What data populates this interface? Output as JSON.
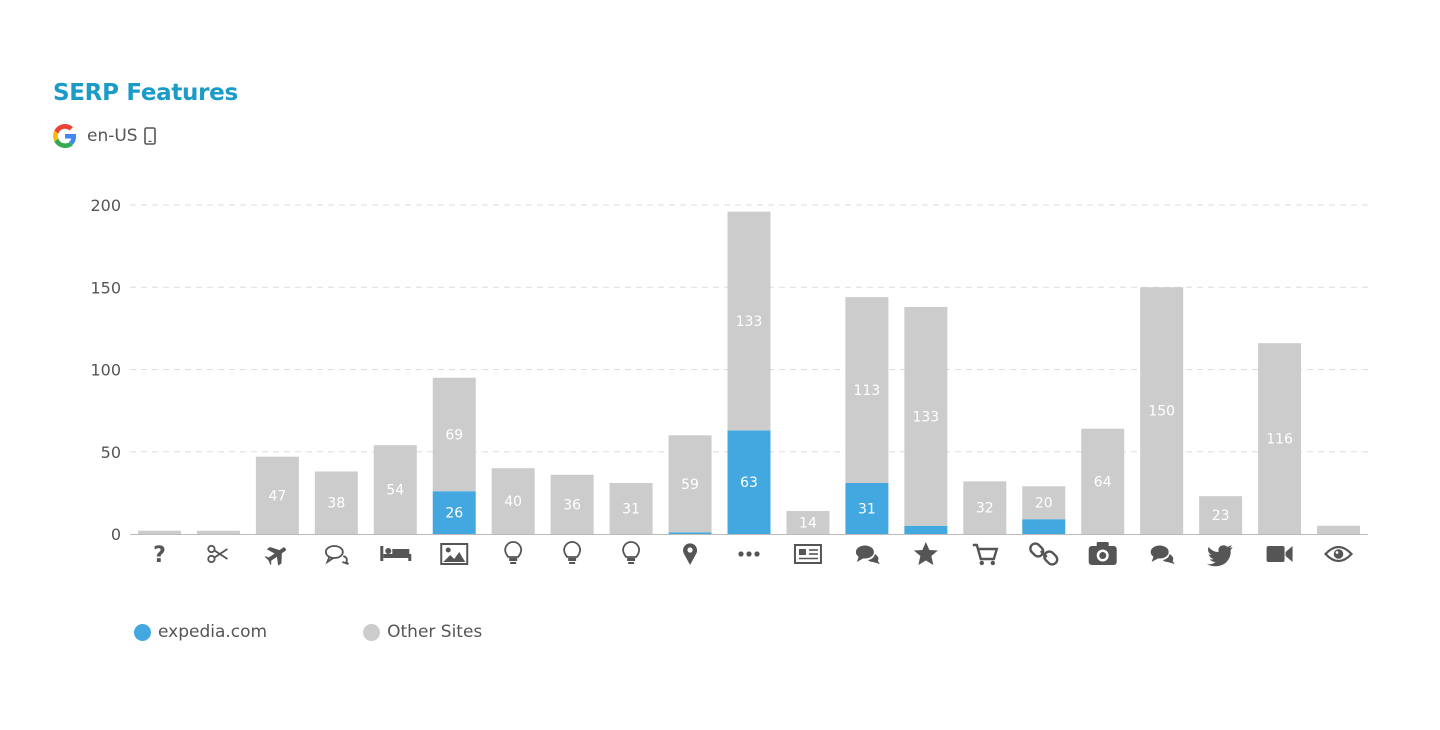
{
  "header": {
    "title": "SERP Features",
    "locale": "en-US",
    "search_engine_icon": "google-g-icon",
    "device_icon": "mobile-phone-icon"
  },
  "colors": {
    "title": "#1a9bc8",
    "domain_series": "#44a8e0",
    "other_series": "#cccccc"
  },
  "chart_data": {
    "type": "bar",
    "stacked": true,
    "categories": [
      "question-icon",
      "scissors-icon",
      "plane-icon",
      "chat-bubbles-icon",
      "bed-icon",
      "image-icon",
      "lightbulb-icon",
      "lightbulb-icon",
      "lightbulb-icon",
      "map-marker-icon",
      "ellipsis-icon",
      "newspaper-icon",
      "comments-icon",
      "star-icon",
      "shopping-cart-icon",
      "link-icon",
      "camera-icon",
      "comments-icon",
      "twitter-icon",
      "video-camera-icon",
      "eye-icon"
    ],
    "series": [
      {
        "name": "expedia.com",
        "color": "#44a8e0",
        "values": [
          0,
          0,
          0,
          0,
          0,
          26,
          0,
          0,
          0,
          1,
          63,
          0,
          31,
          5,
          0,
          9,
          0,
          0,
          0,
          0,
          0
        ],
        "labels": [
          "",
          "",
          "",
          "",
          "",
          "26",
          "",
          "",
          "",
          "",
          "63",
          "",
          "31",
          "",
          "",
          "",
          "",
          "",
          "",
          "",
          ""
        ]
      },
      {
        "name": "Other Sites",
        "color": "#cccccc",
        "values": [
          2,
          2,
          47,
          38,
          54,
          69,
          40,
          36,
          31,
          59,
          133,
          14,
          113,
          133,
          32,
          20,
          64,
          150,
          23,
          116,
          5
        ],
        "labels": [
          "",
          "",
          "47",
          "38",
          "54",
          "69",
          "40",
          "36",
          "31",
          "59",
          "133",
          "14",
          "113",
          "133",
          "32",
          "20",
          "64",
          "150",
          "23",
          "116",
          ""
        ]
      }
    ],
    "y_ticks": [
      "0",
      "50",
      "100",
      "150",
      "200"
    ],
    "ylim": [
      0,
      200
    ],
    "grid": true,
    "legend_position": "bottom-left"
  },
  "legend": {
    "items": [
      {
        "label": "expedia.com",
        "color": "#44a8e0"
      },
      {
        "label": "Other Sites",
        "color": "#cccccc"
      }
    ]
  }
}
